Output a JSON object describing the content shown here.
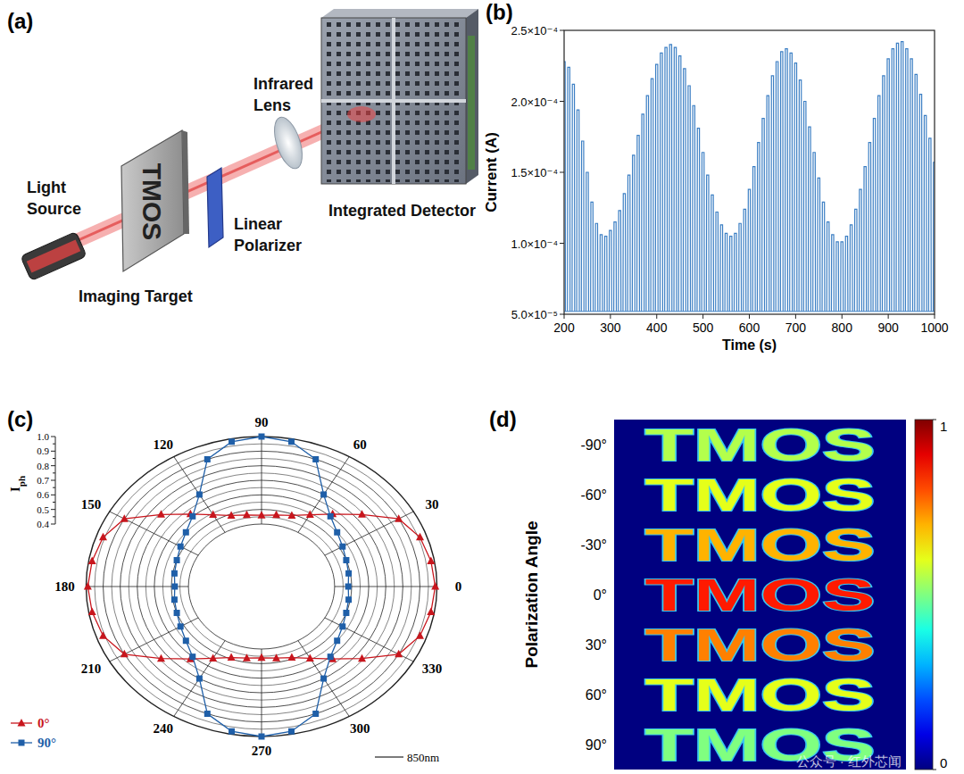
{
  "panel_labels": [
    "(a)",
    "(b)",
    "(c)",
    "(d)"
  ],
  "diagram": {
    "light_source": [
      "Light",
      "Source"
    ],
    "imaging_target": "Imaging Target",
    "target_text": "TMOS",
    "linear_polarizer": [
      "Linear",
      "Polarizer"
    ],
    "infrared_lens": [
      "Infrared",
      "Lens"
    ],
    "integrated_detector": "Integrated Detector"
  },
  "chart_data": [
    {
      "type": "line",
      "x_label": "Time (s)",
      "y_label": "Current (A)",
      "x": [
        200,
        210,
        220,
        230,
        240,
        250,
        260,
        270,
        280,
        290,
        300,
        310,
        320,
        330,
        340,
        350,
        360,
        370,
        380,
        390,
        400,
        410,
        420,
        430,
        440,
        450,
        460,
        470,
        480,
        490,
        500,
        510,
        520,
        530,
        540,
        550,
        560,
        570,
        580,
        590,
        600,
        610,
        620,
        630,
        640,
        650,
        660,
        670,
        680,
        690,
        700,
        710,
        720,
        730,
        740,
        750,
        760,
        770,
        780,
        790,
        800,
        810,
        820,
        830,
        840,
        850,
        860,
        870,
        880,
        890,
        900,
        910,
        920,
        930,
        940,
        950,
        960,
        970,
        980,
        990,
        1000
      ],
      "series": [
        {
          "color": "#3c7fc4",
          "values": [
            0.000228,
            0.000224,
            0.000212,
            0.000194,
            0.000172,
            0.00015,
            0.000129,
            0.000114,
            0.000106,
            0.000105,
            0.000109,
            0.000115,
            0.000123,
            0.000135,
            0.000148,
            0.000162,
            0.000176,
            0.000191,
            0.000204,
            0.000216,
            0.000226,
            0.000234,
            0.000238,
            0.00024,
            0.000238,
            0.000232,
            0.000223,
            0.000211,
            0.000197,
            0.000181,
            0.000164,
            0.000148,
            0.000134,
            0.000122,
            0.000113,
            0.000107,
            0.000105,
            0.000107,
            0.000114,
            0.000124,
            0.000138,
            0.000154,
            0.000171,
            0.000188,
            0.000204,
            0.000218,
            0.000228,
            0.000235,
            0.000237,
            0.000234,
            0.000227,
            0.000215,
            0.0002,
            0.000182,
            0.000164,
            0.000146,
            0.000129,
            0.000115,
            0.000106,
            0.000101,
            0.000101,
            0.000105,
            0.000113,
            0.000124,
            0.000138,
            0.000154,
            0.000171,
            0.000188,
            0.000204,
            0.000218,
            0.00023,
            0.000237,
            0.000241,
            0.000242,
            0.000237,
            0.00023,
            0.000219,
            0.000205,
            0.00019,
            0.000174,
            0.000157
          ]
        }
      ],
      "off_value": 5.2e-05,
      "xlim": [
        200,
        1000
      ],
      "xticks": [
        200,
        300,
        400,
        500,
        600,
        700,
        800,
        900,
        1000
      ],
      "ylim": [
        5e-05,
        0.00025
      ],
      "yticks": [
        {
          "value": 5e-05,
          "label": "5.0×10⁻⁵"
        },
        {
          "value": 0.0001,
          "label": "1.0×10⁻⁴"
        },
        {
          "value": 0.00015,
          "label": "1.5×10⁻⁴"
        },
        {
          "value": 0.0002,
          "label": "2.0×10⁻⁴"
        },
        {
          "value": 0.00025,
          "label": "2.5×10⁻⁴"
        }
      ]
    },
    {
      "type": "polar",
      "r_label": "Iph",
      "theta": [
        0,
        10,
        20,
        30,
        40,
        50,
        60,
        70,
        80,
        90,
        100,
        110,
        120,
        130,
        140,
        150,
        160,
        170,
        180,
        190,
        200,
        210,
        220,
        230,
        240,
        250,
        260,
        270,
        280,
        290,
        300,
        310,
        320,
        330,
        340,
        350
      ],
      "series": [
        {
          "name": "0°",
          "color": "#c8161d",
          "marker": "triangle",
          "values": [
            0.99,
            0.98,
            0.96,
            0.9,
            0.74,
            0.62,
            0.54,
            0.49,
            0.47,
            0.46,
            0.47,
            0.49,
            0.54,
            0.62,
            0.74,
            0.9,
            0.96,
            0.98,
            0.99,
            0.98,
            0.96,
            0.9,
            0.74,
            0.62,
            0.54,
            0.49,
            0.47,
            0.46,
            0.47,
            0.49,
            0.54,
            0.62,
            0.74,
            0.9,
            0.96,
            0.98
          ]
        },
        {
          "name": "90°",
          "color": "#1f5fa8",
          "marker": "square",
          "values": [
            0.48,
            0.49,
            0.5,
            0.52,
            0.55,
            0.6,
            0.7,
            0.9,
            0.98,
            1.0,
            0.98,
            0.9,
            0.7,
            0.6,
            0.55,
            0.52,
            0.5,
            0.49,
            0.48,
            0.49,
            0.5,
            0.52,
            0.55,
            0.6,
            0.7,
            0.9,
            0.98,
            1.0,
            0.98,
            0.9,
            0.7,
            0.6,
            0.55,
            0.52,
            0.5,
            0.49
          ]
        }
      ],
      "rlim": [
        0.4,
        1.0
      ],
      "rticks": [
        0.4,
        0.5,
        0.6,
        0.7,
        0.8,
        0.9,
        {
          "value": 1.0,
          "label": "1.0"
        }
      ],
      "rminor": [
        0.45,
        0.55,
        0.65,
        0.75,
        0.85,
        0.95
      ],
      "theta_ticks": [
        0,
        30,
        60,
        90,
        120,
        150,
        180,
        210,
        240,
        270,
        300,
        330
      ],
      "scale_bar": "850nm",
      "legend": "lower left"
    },
    {
      "type": "heatmap",
      "y_label": "Polarization Angle",
      "image_text": "TMOS",
      "categories": [
        "-90°",
        "-60°",
        "-30°",
        "0°",
        "30°",
        "60°",
        "90°"
      ],
      "values": [
        0.55,
        0.6,
        0.7,
        0.85,
        0.75,
        0.6,
        0.5
      ],
      "colorbar_range": [
        0,
        1
      ],
      "colorbar_ticks": [
        0,
        1
      ]
    }
  ],
  "watermark": "公众号 · 红外芯闻"
}
